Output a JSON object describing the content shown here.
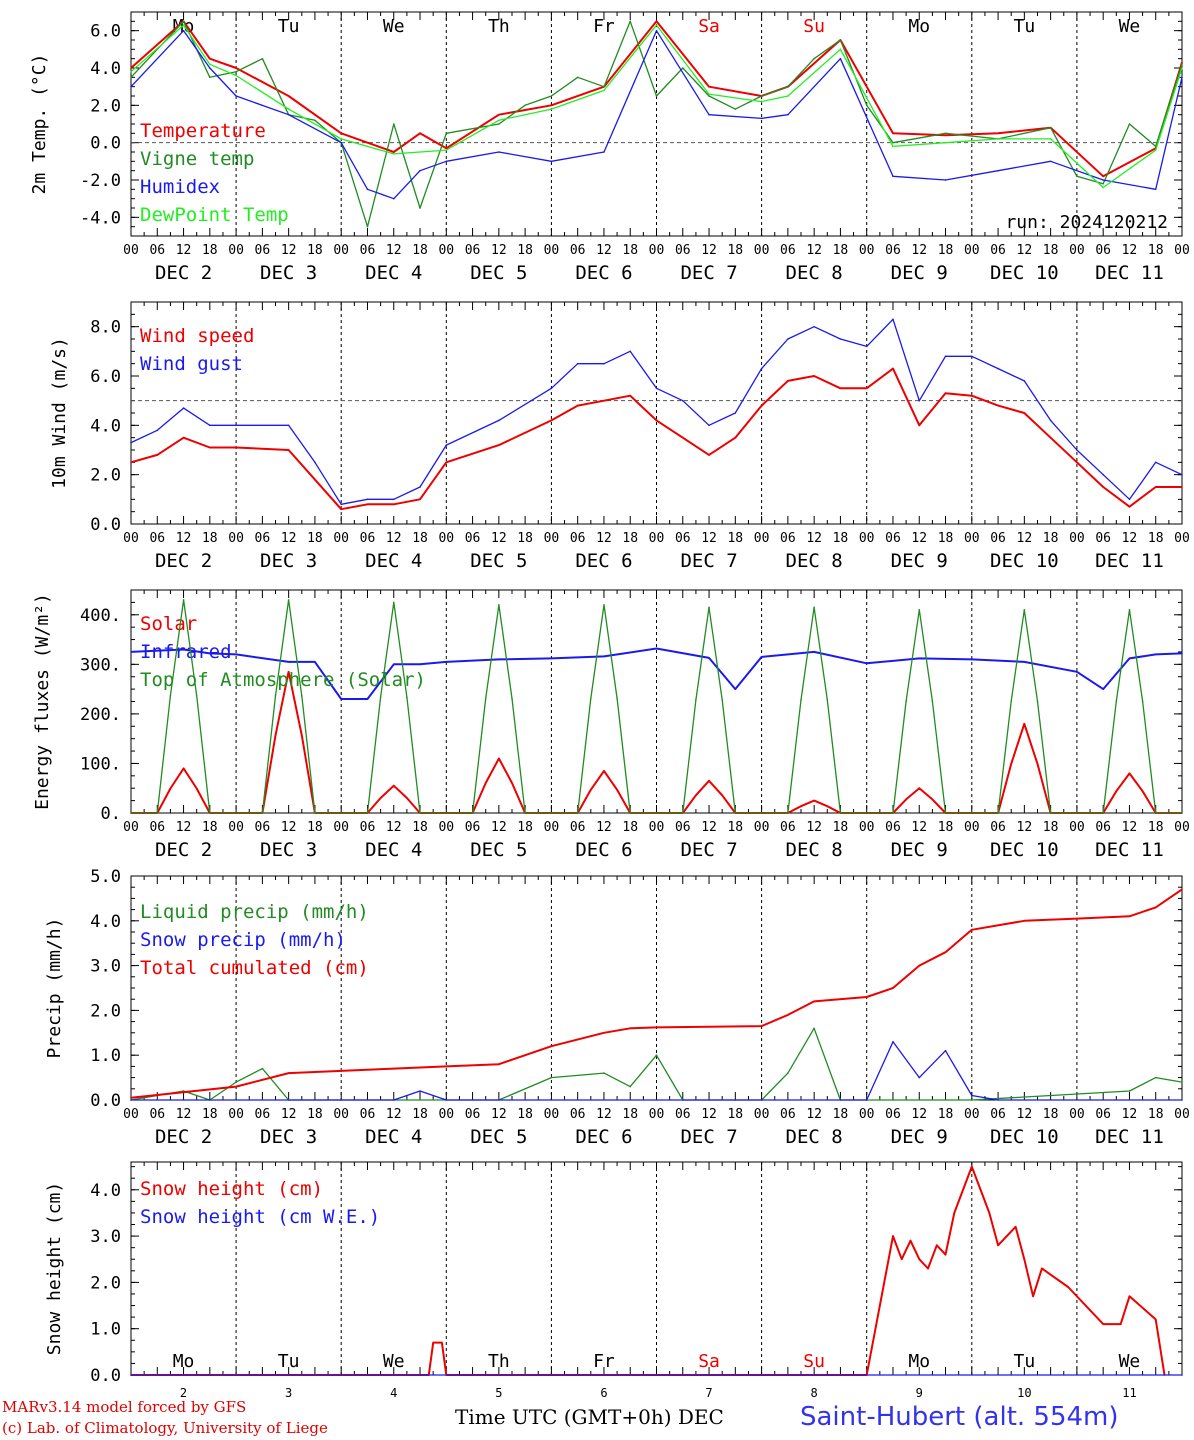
{
  "footer": {
    "model": "MARv3.14 model forced by GFS",
    "credit": "(c) Lab. of Climatology, University of Liege",
    "axis_title": "Time UTC (GMT+0h) DEC",
    "station": "Saint-Hubert (alt. 554m)"
  },
  "colors": {
    "red": "#ee0000",
    "green": "#228b22",
    "blue": "#1a1aee",
    "lightgreen": "#22ee22",
    "weekend": "#ee0000"
  },
  "time_axis": {
    "hour_ticks": [
      "00",
      "06",
      "12",
      "18"
    ],
    "days": [
      "DEC  2",
      "DEC  3",
      "DEC  4",
      "DEC  5",
      "DEC  6",
      "DEC  7",
      "DEC  8",
      "DEC  9",
      "DEC 10",
      "DEC 11"
    ],
    "weekdays": [
      "Mo",
      "Tu",
      "We",
      "Th",
      "Fr",
      "Sa",
      "Su",
      "Mo",
      "Tu",
      "We"
    ],
    "weekend_index": [
      5,
      6
    ],
    "day_numbers": [
      "2",
      "3",
      "4",
      "5",
      "6",
      "7",
      "8",
      "9",
      "10",
      "11"
    ]
  },
  "chart_data": [
    {
      "type": "line",
      "ylabel": "2m Temp. (°C)",
      "ylim": [
        -5,
        7
      ],
      "yticks": [
        6,
        4,
        2,
        0,
        -2,
        -4
      ],
      "ytick_labels": [
        "6.0",
        "4.0",
        "2.0",
        "0.0",
        "-2.0",
        "-4.0"
      ],
      "hline": 0,
      "annotation": "run: 2024120212",
      "x_unit": "hours since DEC 2 00 UTC",
      "series": [
        {
          "name": "Temperature",
          "color": "red",
          "x": [
            0,
            12,
            18,
            24,
            36,
            48,
            60,
            66,
            72,
            84,
            96,
            108,
            120,
            132,
            144,
            150,
            162,
            174,
            186,
            198,
            210,
            222,
            234,
            240
          ],
          "values": [
            4.0,
            6.5,
            4.5,
            4.0,
            2.5,
            0.5,
            -0.5,
            0.5,
            -0.3,
            1.5,
            2.0,
            3.0,
            6.5,
            3.0,
            2.5,
            3.0,
            5.5,
            0.5,
            0.4,
            0.5,
            0.8,
            -1.8,
            -0.3,
            4.3
          ]
        },
        {
          "name": "Vigne temp",
          "color": "green",
          "x": [
            0,
            12,
            18,
            24,
            30,
            36,
            42,
            48,
            54,
            60,
            66,
            72,
            84,
            90,
            96,
            102,
            108,
            114,
            120,
            126,
            132,
            138,
            144,
            150,
            156,
            162,
            168,
            174,
            186,
            198,
            210,
            216,
            222,
            228,
            234,
            240
          ],
          "values": [
            3.5,
            6.5,
            3.5,
            3.8,
            4.5,
            1.5,
            1.2,
            0.0,
            -4.5,
            1.0,
            -3.5,
            0.5,
            1.0,
            2.0,
            2.5,
            3.5,
            3.0,
            6.5,
            2.5,
            4.0,
            2.5,
            1.8,
            2.5,
            3.0,
            4.5,
            5.5,
            2.0,
            0.0,
            0.5,
            0.2,
            0.8,
            -1.8,
            -2.2,
            1.0,
            -0.2,
            4.2
          ]
        },
        {
          "name": "Humidex",
          "color": "blue",
          "x": [
            0,
            12,
            18,
            24,
            36,
            48,
            54,
            60,
            66,
            72,
            84,
            96,
            108,
            120,
            132,
            144,
            150,
            162,
            174,
            186,
            198,
            210,
            222,
            234,
            240
          ],
          "values": [
            3.0,
            6.0,
            4.0,
            2.5,
            1.5,
            0.0,
            -2.5,
            -3.0,
            -1.5,
            -1.0,
            -0.5,
            -1.0,
            -0.5,
            6.0,
            1.5,
            1.3,
            1.5,
            4.5,
            -1.8,
            -2.0,
            -1.5,
            -1.0,
            -2.0,
            -2.5,
            3.5
          ]
        },
        {
          "name": "DewPoint Temp",
          "color": "lightgreen",
          "x": [
            0,
            12,
            18,
            24,
            36,
            48,
            60,
            72,
            84,
            96,
            108,
            120,
            132,
            144,
            150,
            162,
            174,
            186,
            198,
            210,
            222,
            234,
            240
          ],
          "values": [
            3.8,
            6.3,
            4.2,
            3.6,
            1.8,
            0.2,
            -0.6,
            -0.4,
            1.2,
            1.8,
            2.8,
            6.3,
            2.6,
            2.2,
            2.5,
            5.0,
            -0.2,
            0.0,
            0.2,
            0.2,
            -2.4,
            -0.4,
            4.0
          ]
        }
      ]
    },
    {
      "type": "line",
      "ylabel": "10m Wind (m/s)",
      "ylim": [
        0,
        9
      ],
      "yticks": [
        8,
        6,
        4,
        2,
        0
      ],
      "ytick_labels": [
        "8.0",
        "6.0",
        "4.0",
        "2.0",
        "0.0"
      ],
      "hline": 5,
      "series": [
        {
          "name": "Wind speed",
          "color": "red",
          "x": [
            0,
            6,
            12,
            18,
            24,
            36,
            42,
            48,
            54,
            60,
            66,
            72,
            84,
            96,
            102,
            108,
            114,
            120,
            126,
            132,
            138,
            144,
            150,
            156,
            162,
            168,
            174,
            180,
            186,
            192,
            198,
            204,
            210,
            216,
            222,
            228,
            234,
            240
          ],
          "values": [
            2.5,
            2.8,
            3.5,
            3.1,
            3.1,
            3.0,
            1.8,
            0.6,
            0.8,
            0.8,
            1.0,
            2.5,
            3.2,
            4.2,
            4.8,
            5.0,
            5.2,
            4.2,
            3.5,
            2.8,
            3.5,
            4.8,
            5.8,
            6.0,
            5.5,
            5.5,
            6.3,
            4.0,
            5.3,
            5.2,
            4.8,
            4.5,
            3.5,
            2.5,
            1.5,
            0.7,
            1.5,
            1.5
          ]
        },
        {
          "name": "Wind gust",
          "color": "blue",
          "x": [
            0,
            6,
            12,
            18,
            24,
            36,
            42,
            48,
            54,
            60,
            66,
            72,
            84,
            96,
            102,
            108,
            114,
            120,
            126,
            132,
            138,
            144,
            150,
            156,
            162,
            168,
            174,
            180,
            186,
            192,
            198,
            204,
            210,
            216,
            222,
            228,
            234,
            240
          ],
          "values": [
            3.3,
            3.8,
            4.7,
            4.0,
            4.0,
            4.0,
            2.5,
            0.8,
            1.0,
            1.0,
            1.5,
            3.2,
            4.2,
            5.5,
            6.5,
            6.5,
            7.0,
            5.5,
            5.0,
            4.0,
            4.5,
            6.3,
            7.5,
            8.0,
            7.5,
            7.2,
            8.3,
            5.0,
            6.8,
            6.8,
            6.3,
            5.8,
            4.2,
            3.0,
            2.0,
            1.0,
            2.5,
            2.0
          ]
        }
      ]
    },
    {
      "type": "line",
      "ylabel": "Energy fluxes (W/m²)",
      "ylim": [
        0,
        450
      ],
      "yticks": [
        400,
        300,
        200,
        100,
        0
      ],
      "ytick_labels": [
        "400.",
        "300.",
        "200.",
        "100.",
        "0."
      ],
      "series": [
        {
          "name": "Solar",
          "color": "red",
          "peaks": [
            90,
            285,
            55,
            110,
            85,
            65,
            25,
            50,
            180,
            80
          ]
        },
        {
          "name": "Infrared",
          "color": "blue",
          "x": [
            0,
            12,
            18,
            24,
            36,
            42,
            48,
            54,
            60,
            66,
            72,
            84,
            96,
            108,
            120,
            132,
            138,
            144,
            156,
            168,
            180,
            192,
            204,
            216,
            222,
            228,
            234,
            240
          ],
          "values": [
            325,
            330,
            322,
            320,
            305,
            305,
            230,
            230,
            300,
            300,
            305,
            310,
            312,
            316,
            332,
            313,
            250,
            315,
            325,
            302,
            312,
            310,
            305,
            285,
            250,
            312,
            320,
            322
          ]
        },
        {
          "name": "Top of Atmosphere (Solar)",
          "color": "green",
          "peaks": [
            430,
            430,
            425,
            420,
            420,
            415,
            415,
            410,
            410,
            410
          ]
        }
      ]
    },
    {
      "type": "line",
      "ylabel": "Precip (mm/h)",
      "ylim": [
        0,
        5
      ],
      "yticks": [
        5,
        4,
        3,
        2,
        1,
        0
      ],
      "ytick_labels": [
        "5.0",
        "4.0",
        "3.0",
        "2.0",
        "1.0",
        "0.0"
      ],
      "series": [
        {
          "name": "Liquid precip (mm/h)",
          "color": "green",
          "x": [
            0,
            12,
            18,
            24,
            30,
            36,
            48,
            84,
            96,
            108,
            114,
            120,
            126,
            132,
            138,
            144,
            150,
            156,
            162,
            168,
            174,
            192,
            228,
            234,
            240
          ],
          "values": [
            0.0,
            0.2,
            0.0,
            0.4,
            0.7,
            0.0,
            0.0,
            0.0,
            0.5,
            0.6,
            0.3,
            1.0,
            0.0,
            0.0,
            0.0,
            0.0,
            0.6,
            1.6,
            0.0,
            0.0,
            0.0,
            0.0,
            0.2,
            0.5,
            0.4
          ]
        },
        {
          "name": "Snow precip (mm/h)",
          "color": "blue",
          "x": [
            0,
            60,
            66,
            72,
            144,
            168,
            174,
            180,
            186,
            192,
            198,
            240
          ],
          "values": [
            0.0,
            0.0,
            0.2,
            0.0,
            0.0,
            0.0,
            1.3,
            0.5,
            1.1,
            0.1,
            0.0,
            0.0
          ]
        },
        {
          "name": "Total cumulated (cm)",
          "color": "red",
          "x": [
            0,
            24,
            36,
            48,
            60,
            72,
            84,
            96,
            108,
            114,
            120,
            144,
            150,
            156,
            168,
            174,
            180,
            186,
            192,
            204,
            216,
            228,
            234,
            240
          ],
          "values": [
            0.05,
            0.3,
            0.6,
            0.65,
            0.7,
            0.75,
            0.8,
            1.2,
            1.5,
            1.6,
            1.62,
            1.65,
            1.9,
            2.2,
            2.3,
            2.5,
            3.0,
            3.3,
            3.8,
            4.0,
            4.05,
            4.1,
            4.3,
            4.7
          ]
        }
      ]
    },
    {
      "type": "line",
      "ylabel": "Snow height (cm)",
      "ylim": [
        0,
        4.6
      ],
      "yticks": [
        4,
        3,
        2,
        1,
        0
      ],
      "ytick_labels": [
        "4.0",
        "3.0",
        "2.0",
        "1.0",
        "0.0"
      ],
      "series": [
        {
          "name": "Snow height (cm)",
          "color": "red",
          "x": [
            0,
            68,
            69,
            71,
            72,
            168,
            174,
            176,
            178,
            180,
            182,
            184,
            186,
            188,
            192,
            196,
            198,
            202,
            204,
            206,
            208,
            214,
            222,
            226,
            228,
            234,
            236
          ],
          "values": [
            0.0,
            0.0,
            0.7,
            0.7,
            0.0,
            0.0,
            3.0,
            2.5,
            2.9,
            2.5,
            2.3,
            2.8,
            2.6,
            3.5,
            4.5,
            3.5,
            2.8,
            3.2,
            2.5,
            1.7,
            2.3,
            1.9,
            1.1,
            1.1,
            1.7,
            1.2,
            0.0
          ]
        },
        {
          "name": "Snow height (cm W.E.)",
          "color": "blue",
          "x": [
            0,
            240
          ],
          "values": [
            0,
            0
          ]
        }
      ]
    }
  ]
}
